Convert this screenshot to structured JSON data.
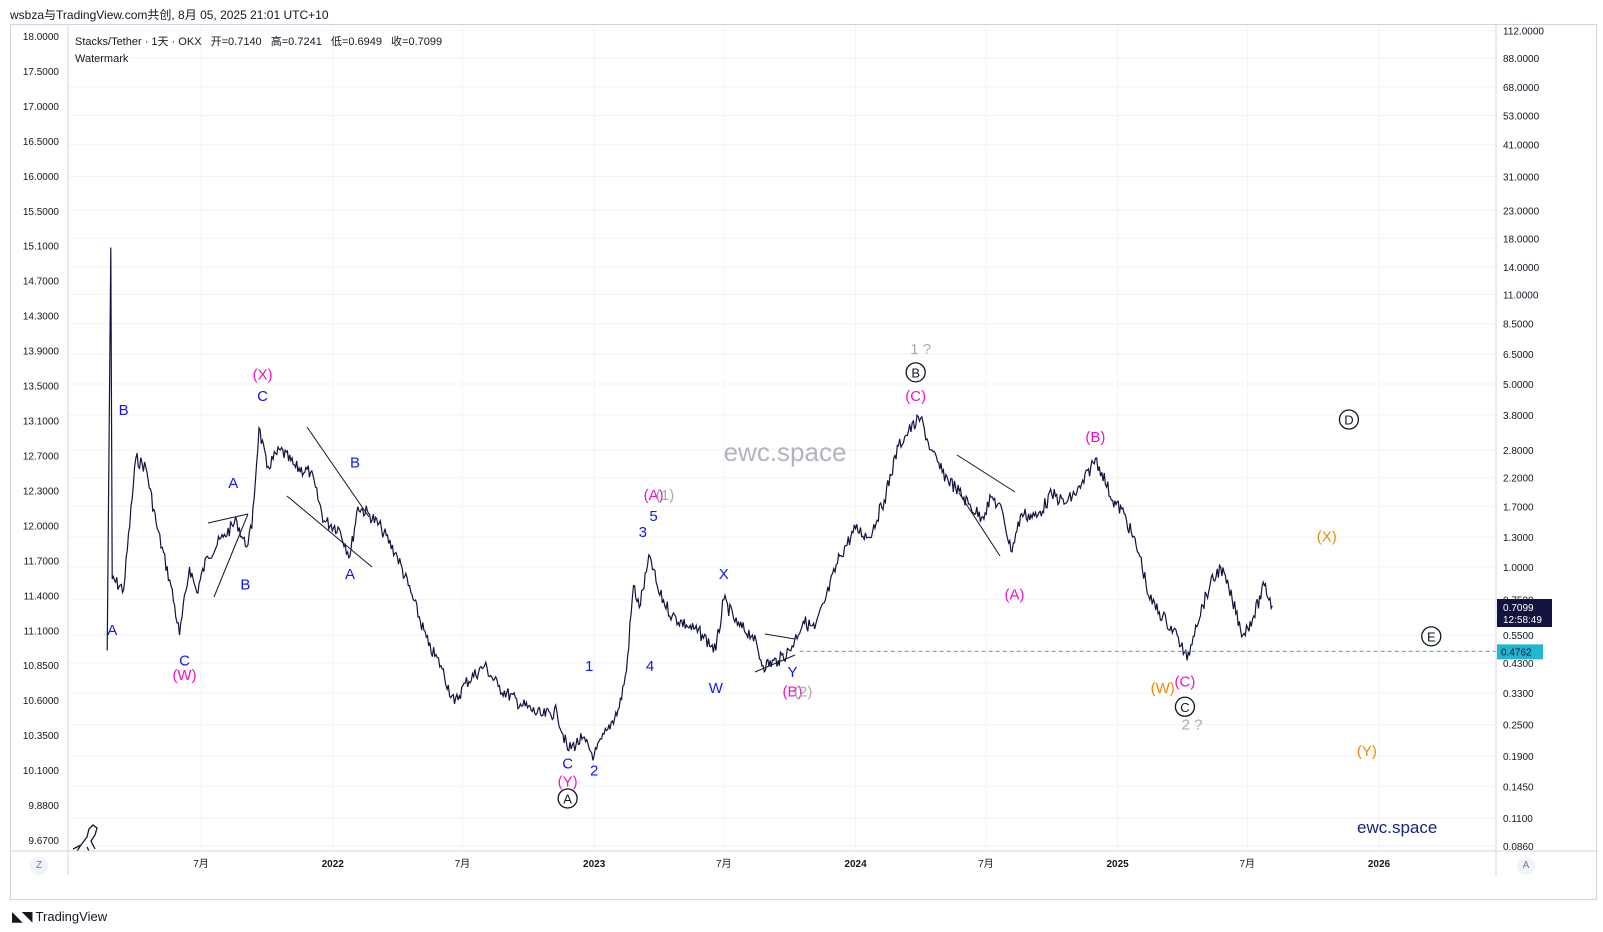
{
  "top_caption": "wsbza与TradingView.com共创, 8月 05, 2025 21:01 UTC+10",
  "footer": {
    "brand": "TradingView"
  },
  "legend": {
    "symbol": "Stacks/Tether · 1天 · OKX",
    "open_label": "开",
    "open_value": "=0.7140",
    "high_label": "高",
    "high_value": "=0.7241",
    "low_label": "低",
    "low_value": "=0.6949",
    "close_label": "收",
    "close_value": "=0.7099",
    "watermark_line": "Watermark"
  },
  "watermark": {
    "center": "ewc.space",
    "corner": "ewc.space"
  },
  "scale_buttons": {
    "left": "Z",
    "right": "A"
  },
  "price_tags": {
    "last_price": "0.7099",
    "countdown": "12:58:49",
    "level": "0.4762"
  },
  "colors": {
    "candle": "#131340",
    "blue_label": "#1515ee",
    "magenta_label": "#ee11cc",
    "gray_label": "#aaaaaa",
    "orange_label": "#ef8a00",
    "black_label": "#131722",
    "level_line": "#22b6d0",
    "grid": "#f0f3fa"
  },
  "chart_data": {
    "type": "line",
    "subtype": "daily-candlestick-log-scale",
    "left_axis_ticks": [
      "18.0000",
      "17.5000",
      "17.0000",
      "16.5000",
      "16.0000",
      "15.5000",
      "15.1000",
      "14.7000",
      "14.3000",
      "13.9000",
      "13.5000",
      "13.1000",
      "12.7000",
      "12.3000",
      "12.0000",
      "11.7000",
      "11.4000",
      "11.1000",
      "10.8500",
      "10.6000",
      "10.3500",
      "10.1000",
      "9.8800",
      "9.6700"
    ],
    "right_axis_ticks": [
      "112.0000",
      "88.0000",
      "68.0000",
      "53.0000",
      "41.0000",
      "31.0000",
      "23.0000",
      "18.0000",
      "14.0000",
      "11.0000",
      "8.5000",
      "6.5000",
      "5.0000",
      "3.8000",
      "2.8000",
      "2.2000",
      "1.7000",
      "1.3000",
      "1.0000",
      "0.7500",
      "0.5500",
      "0.4300",
      "0.3300",
      "0.2500",
      "0.1900",
      "0.1450",
      "0.1100",
      "0.0860"
    ],
    "x_ticks": [
      "7月",
      "2022",
      "7月",
      "2023",
      "7月",
      "2024",
      "7月",
      "2025",
      "7月",
      "2026"
    ],
    "price_path": [
      [
        "2021-02-20",
        0.48
      ],
      [
        "2021-02-25",
        16.6
      ],
      [
        "2021-02-27",
        0.9
      ],
      [
        "2021-03-15",
        0.82
      ],
      [
        "2021-04-01",
        2.6
      ],
      [
        "2021-04-15",
        2.4
      ],
      [
        "2021-05-01",
        1.4
      ],
      [
        "2021-05-20",
        0.85
      ],
      [
        "2021-06-01",
        0.55
      ],
      [
        "2021-06-15",
        1.0
      ],
      [
        "2021-06-25",
        0.8
      ],
      [
        "2021-07-10",
        1.1
      ],
      [
        "2021-08-01",
        1.3
      ],
      [
        "2021-08-20",
        1.5
      ],
      [
        "2021-09-01",
        1.2
      ],
      [
        "2021-09-10",
        1.4
      ],
      [
        "2021-09-20",
        3.4
      ],
      [
        "2021-10-01",
        2.4
      ],
      [
        "2021-10-20",
        2.8
      ],
      [
        "2021-11-10",
        2.4
      ],
      [
        "2021-12-01",
        2.3
      ],
      [
        "2021-12-20",
        1.5
      ],
      [
        "2022-01-10",
        1.4
      ],
      [
        "2022-01-25",
        1.1
      ],
      [
        "2022-02-05",
        1.7
      ],
      [
        "2022-02-20",
        1.6
      ],
      [
        "2022-03-10",
        1.4
      ],
      [
        "2022-04-01",
        1.1
      ],
      [
        "2022-04-20",
        0.8
      ],
      [
        "2022-05-15",
        0.5
      ],
      [
        "2022-06-01",
        0.42
      ],
      [
        "2022-06-20",
        0.3
      ],
      [
        "2022-07-05",
        0.36
      ],
      [
        "2022-08-01",
        0.42
      ],
      [
        "2022-08-20",
        0.35
      ],
      [
        "2022-09-20",
        0.3
      ],
      [
        "2022-10-20",
        0.27
      ],
      [
        "2022-11-10",
        0.28
      ],
      [
        "2022-11-25",
        0.2
      ],
      [
        "2022-12-15",
        0.22
      ],
      [
        "2023-01-01",
        0.19
      ],
      [
        "2023-01-20",
        0.24
      ],
      [
        "2023-02-05",
        0.29
      ],
      [
        "2023-02-15",
        0.4
      ],
      [
        "2023-02-25",
        0.85
      ],
      [
        "2023-03-05",
        0.7
      ],
      [
        "2023-03-20",
        1.1
      ],
      [
        "2023-04-01",
        0.8
      ],
      [
        "2023-04-20",
        0.65
      ],
      [
        "2023-05-10",
        0.6
      ],
      [
        "2023-06-01",
        0.55
      ],
      [
        "2023-06-20",
        0.48
      ],
      [
        "2023-07-01",
        0.75
      ],
      [
        "2023-07-20",
        0.6
      ],
      [
        "2023-08-10",
        0.55
      ],
      [
        "2023-08-25",
        0.42
      ],
      [
        "2023-09-15",
        0.44
      ],
      [
        "2023-10-01",
        0.48
      ],
      [
        "2023-10-20",
        0.62
      ],
      [
        "2023-11-05",
        0.58
      ],
      [
        "2023-11-20",
        0.75
      ],
      [
        "2023-12-10",
        1.1
      ],
      [
        "2024-01-01",
        1.4
      ],
      [
        "2024-01-20",
        1.3
      ],
      [
        "2024-02-10",
        1.8
      ],
      [
        "2024-03-01",
        2.9
      ],
      [
        "2024-03-15",
        3.3
      ],
      [
        "2024-04-01",
        3.7
      ],
      [
        "2024-04-15",
        2.8
      ],
      [
        "2024-05-01",
        2.3
      ],
      [
        "2024-05-20",
        2.0
      ],
      [
        "2024-06-10",
        1.7
      ],
      [
        "2024-06-25",
        1.55
      ],
      [
        "2024-07-10",
        1.85
      ],
      [
        "2024-07-25",
        1.6
      ],
      [
        "2024-08-05",
        1.15
      ],
      [
        "2024-08-20",
        1.6
      ],
      [
        "2024-09-10",
        1.55
      ],
      [
        "2024-10-01",
        1.9
      ],
      [
        "2024-10-20",
        1.75
      ],
      [
        "2024-11-10",
        2.0
      ],
      [
        "2024-12-01",
        2.6
      ],
      [
        "2024-12-10",
        2.3
      ],
      [
        "2024-12-25",
        1.8
      ],
      [
        "2025-01-10",
        1.6
      ],
      [
        "2025-02-01",
        1.1
      ],
      [
        "2025-02-15",
        0.75
      ],
      [
        "2025-03-10",
        0.62
      ],
      [
        "2025-03-25",
        0.55
      ],
      [
        "2025-04-08",
        0.44
      ],
      [
        "2025-04-20",
        0.6
      ],
      [
        "2025-05-10",
        0.85
      ],
      [
        "2025-05-25",
        1.0
      ],
      [
        "2025-06-10",
        0.75
      ],
      [
        "2025-06-25",
        0.55
      ],
      [
        "2025-07-10",
        0.65
      ],
      [
        "2025-07-25",
        0.85
      ],
      [
        "2025-08-05",
        0.71
      ]
    ],
    "annotations": [
      {
        "text": "A",
        "date": "2021-02-27",
        "price": 0.55,
        "color": "blue"
      },
      {
        "text": "B",
        "date": "2021-03-15",
        "price": 3.8,
        "color": "blue"
      },
      {
        "text": "C",
        "date": "2021-06-08",
        "price": 0.42,
        "color": "blue"
      },
      {
        "text": "(W)",
        "date": "2021-06-08",
        "price": 0.37,
        "color": "magenta"
      },
      {
        "text": "A",
        "date": "2021-08-15",
        "price": 2.0,
        "color": "blue"
      },
      {
        "text": "B",
        "date": "2021-09-01",
        "price": 0.82,
        "color": "blue"
      },
      {
        "text": "(X)",
        "date": "2021-09-25",
        "price": 5.2,
        "color": "magenta"
      },
      {
        "text": "C",
        "date": "2021-09-25",
        "price": 4.3,
        "color": "blue"
      },
      {
        "text": "B",
        "date": "2022-02-01",
        "price": 2.4,
        "color": "blue"
      },
      {
        "text": "A",
        "date": "2022-01-25",
        "price": 0.9,
        "color": "blue"
      },
      {
        "text": "C",
        "date": "2022-11-25",
        "price": 0.17,
        "color": "blue"
      },
      {
        "text": "(Y)",
        "date": "2022-11-25",
        "price": 0.145,
        "color": "magenta"
      },
      {
        "text": "A",
        "date": "2022-11-25",
        "price": 0.125,
        "color": "black",
        "circled": true
      },
      {
        "text": "1",
        "date": "2022-12-25",
        "price": 0.4,
        "color": "blue"
      },
      {
        "text": "2",
        "date": "2023-01-01",
        "price": 0.16,
        "color": "blue"
      },
      {
        "text": "3",
        "date": "2023-03-10",
        "price": 1.3,
        "color": "blue"
      },
      {
        "text": "4",
        "date": "2023-03-20",
        "price": 0.4,
        "color": "blue"
      },
      {
        "text": "5",
        "date": "2023-03-25",
        "price": 1.5,
        "color": "blue"
      },
      {
        "text": "(A)",
        "date": "2023-03-25",
        "price": 1.8,
        "color": "magenta"
      },
      {
        "text": "(1)",
        "date": "2023-04-10",
        "price": 1.8,
        "color": "gray"
      },
      {
        "text": "X",
        "date": "2023-07-01",
        "price": 0.9,
        "color": "blue"
      },
      {
        "text": "W",
        "date": "2023-06-20",
        "price": 0.33,
        "color": "blue"
      },
      {
        "text": "Y",
        "date": "2023-10-05",
        "price": 0.38,
        "color": "blue"
      },
      {
        "text": "(B)",
        "date": "2023-10-05",
        "price": 0.32,
        "color": "magenta"
      },
      {
        "text": "(2)",
        "date": "2023-10-20",
        "price": 0.32,
        "color": "gray"
      },
      {
        "text": "1 ?",
        "date": "2024-04-01",
        "price": 6.5,
        "color": "gray"
      },
      {
        "text": "B",
        "date": "2024-03-25",
        "price": 5.3,
        "color": "black",
        "circled": true
      },
      {
        "text": "(C)",
        "date": "2024-03-25",
        "price": 4.3,
        "color": "magenta"
      },
      {
        "text": "(A)",
        "date": "2024-08-10",
        "price": 0.75,
        "color": "magenta"
      },
      {
        "text": "(B)",
        "date": "2024-12-01",
        "price": 3.0,
        "color": "magenta"
      },
      {
        "text": "(W)",
        "date": "2025-03-05",
        "price": 0.33,
        "color": "orange"
      },
      {
        "text": "(C)",
        "date": "2025-04-05",
        "price": 0.35,
        "color": "magenta"
      },
      {
        "text": "C",
        "date": "2025-04-05",
        "price": 0.28,
        "color": "black",
        "circled": true
      },
      {
        "text": "2 ?",
        "date": "2025-04-15",
        "price": 0.24,
        "color": "gray"
      },
      {
        "text": "D",
        "date": "2025-11-20",
        "price": 3.5,
        "color": "black",
        "circled": true
      },
      {
        "text": "(X)",
        "date": "2025-10-20",
        "price": 1.25,
        "color": "orange"
      },
      {
        "text": "E",
        "date": "2026-03-15",
        "price": 0.52,
        "color": "black",
        "circled": true
      },
      {
        "text": "(Y)",
        "date": "2025-12-15",
        "price": 0.19,
        "color": "orange"
      }
    ],
    "horizontal_level": 0.4762,
    "grid": true
  }
}
